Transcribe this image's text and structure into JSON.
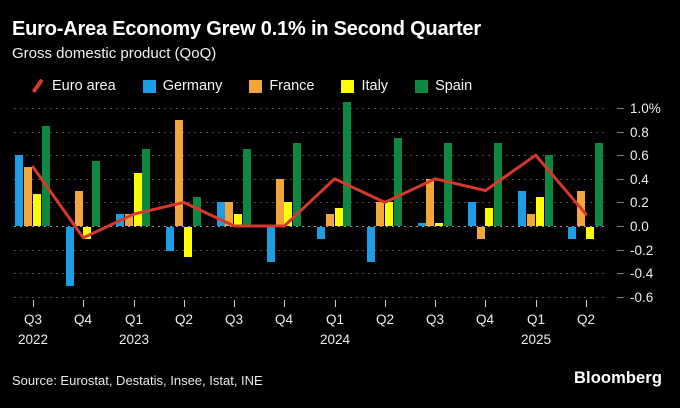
{
  "header": {
    "title": "Euro-Area Economy Grew 0.1% in Second Quarter",
    "subtitle": "Gross domestic product (QoQ)"
  },
  "legend": [
    {
      "label": "Euro area",
      "color": "#d6382c",
      "marker": "line"
    },
    {
      "label": "Germany",
      "color": "#1d9de3",
      "marker": "square"
    },
    {
      "label": "France",
      "color": "#f3a73b",
      "marker": "square"
    },
    {
      "label": "Italy",
      "color": "#fdfd06",
      "marker": "square"
    },
    {
      "label": "Spain",
      "color": "#0e8741",
      "marker": "square"
    }
  ],
  "chart_data": {
    "type": "bar",
    "title": "Euro-Area Economy Grew 0.1% in Second Quarter",
    "subtitle": "Gross domestic product (QoQ)",
    "xlabel": "",
    "ylabel": "",
    "ylim": [
      -0.6,
      1.0
    ],
    "grid": "dotted-horizontal",
    "legend_position": "top",
    "categories": [
      "Q3 2022",
      "Q4 2022",
      "Q1 2023",
      "Q2 2023",
      "Q3 2023",
      "Q4 2023",
      "Q1 2024",
      "Q2 2024",
      "Q3 2024",
      "Q4 2024",
      "Q1 2025",
      "Q2 2025"
    ],
    "x_tick_labels": [
      "Q3",
      "Q4",
      "Q1",
      "Q2",
      "Q3",
      "Q4",
      "Q1",
      "Q2",
      "Q3",
      "Q4",
      "Q1",
      "Q2"
    ],
    "year_labels": [
      {
        "label": "2022",
        "category_index": 0
      },
      {
        "label": "2023",
        "category_index": 2
      },
      {
        "label": "2024",
        "category_index": 6
      },
      {
        "label": "2025",
        "category_index": 10
      }
    ],
    "y_ticks": [
      {
        "value": 1.0,
        "label": "1.0%"
      },
      {
        "value": 0.8,
        "label": "0.8"
      },
      {
        "value": 0.6,
        "label": "0.6"
      },
      {
        "value": 0.4,
        "label": "0.4"
      },
      {
        "value": 0.2,
        "label": "0.2"
      },
      {
        "value": 0.0,
        "label": "0.0"
      },
      {
        "value": -0.2,
        "label": "-0.2"
      },
      {
        "value": -0.4,
        "label": "-0.4"
      },
      {
        "value": -0.6,
        "label": "-0.6"
      }
    ],
    "series": [
      {
        "name": "Euro area",
        "kind": "line",
        "color": "#d6382c",
        "values": [
          0.5,
          -0.1,
          0.1,
          0.2,
          0.0,
          0.0,
          0.4,
          0.2,
          0.4,
          0.3,
          0.6,
          0.1
        ]
      },
      {
        "name": "Germany",
        "kind": "bar",
        "color": "#1d9de3",
        "values": [
          0.6,
          -0.5,
          0.1,
          -0.2,
          0.2,
          -0.3,
          -0.1,
          -0.3,
          0.03,
          0.2,
          0.3,
          -0.1
        ]
      },
      {
        "name": "France",
        "kind": "bar",
        "color": "#f3a73b",
        "values": [
          0.5,
          0.3,
          0.1,
          0.9,
          0.2,
          0.4,
          0.1,
          0.2,
          0.4,
          -0.1,
          0.1,
          0.3
        ]
      },
      {
        "name": "Italy",
        "kind": "bar",
        "color": "#fdfd06",
        "values": [
          0.27,
          -0.1,
          0.45,
          -0.25,
          0.1,
          0.2,
          0.15,
          0.2,
          0.03,
          0.15,
          0.25,
          -0.1
        ]
      },
      {
        "name": "Spain",
        "kind": "bar",
        "color": "#0e8741",
        "values": [
          0.85,
          0.55,
          0.65,
          0.25,
          0.65,
          0.7,
          1.05,
          0.75,
          0.7,
          0.7,
          0.6,
          0.7
        ]
      }
    ]
  },
  "footer": {
    "source": "Source: Eurostat, Destatis, Insee, Istat, INE",
    "brand": "Bloomberg"
  }
}
